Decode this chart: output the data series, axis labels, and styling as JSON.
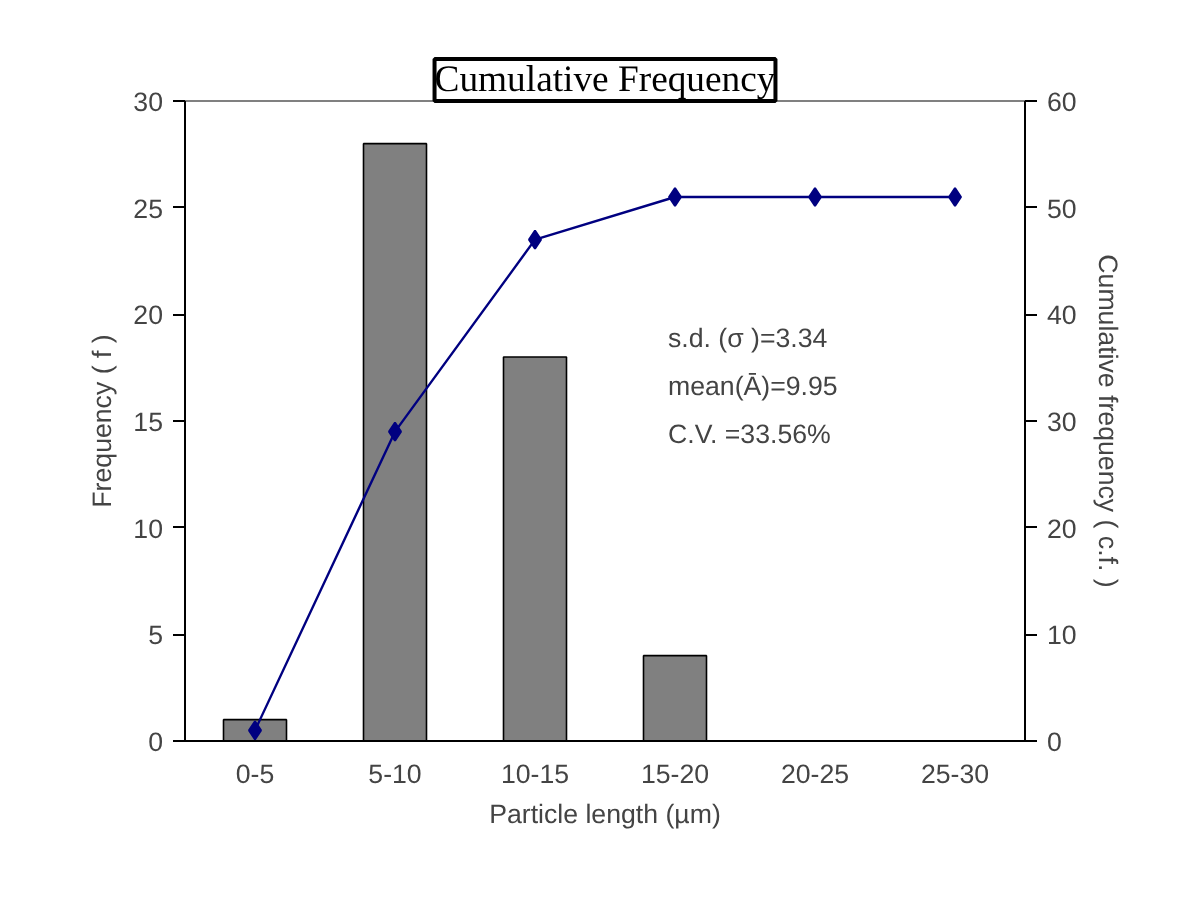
{
  "chart_data": {
    "type": "bar",
    "title": "Cumulative Frequency",
    "xlabel": "Particle length (µm)",
    "ylabel": "Frequency ( f )",
    "y2label": "Cumulative frequency ( c.f. )",
    "categories": [
      "0-5",
      "5-10",
      "10-15",
      "15-20",
      "20-25",
      "25-30"
    ],
    "series": [
      {
        "type": "bar",
        "color": "#808080",
        "values": [
          1,
          28,
          18,
          4,
          0,
          0
        ]
      },
      {
        "type": "line",
        "axis": "y2",
        "color": "#000080",
        "marker": "diamond",
        "values": [
          1,
          29,
          47,
          51,
          51,
          51
        ]
      }
    ],
    "ylim": [
      0,
      30
    ],
    "yticks": [
      0,
      5,
      10,
      15,
      20,
      25,
      30
    ],
    "y2lim": [
      0,
      60
    ],
    "y2ticks": [
      0,
      10,
      20,
      30,
      40,
      50,
      60
    ],
    "annotations": [
      "s.d. (σ )=3.34",
      "mean(Ā)=9.95",
      "C.V.      =33.56%"
    ],
    "grid": false,
    "legend": false
  }
}
